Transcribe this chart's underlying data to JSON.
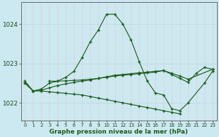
{
  "xlabel": "Graphe pression niveau de la mer (hPa)",
  "background_color": "#cce8f0",
  "grid_color_v": "#e8c8d0",
  "grid_color_h": "#b8d8e0",
  "line_color": "#1a5c1a",
  "ylim": [
    1021.55,
    1024.55
  ],
  "yticks": [
    1022,
    1023,
    1024
  ],
  "xticks": [
    0,
    1,
    2,
    3,
    4,
    5,
    6,
    7,
    8,
    9,
    10,
    11,
    12,
    13,
    14,
    15,
    16,
    17,
    18,
    19,
    20,
    21,
    22,
    23
  ],
  "s1_x": [
    0,
    1,
    2,
    3,
    4,
    5,
    6,
    7,
    8,
    9,
    10,
    11,
    12,
    13,
    14,
    15,
    16,
    17,
    18,
    19,
    20,
    22,
    23
  ],
  "s1_y": [
    1022.55,
    1022.3,
    1022.35,
    1022.5,
    1022.55,
    1022.65,
    1022.8,
    1023.15,
    1023.55,
    1023.85,
    1024.25,
    1024.25,
    1024.0,
    1023.6,
    1023.05,
    1022.55,
    1022.25,
    1022.2,
    1021.85,
    1021.8,
    1022.0,
    1022.5,
    1022.8
  ],
  "s2_x": [
    0,
    1,
    2,
    3,
    4,
    5,
    6,
    7,
    8,
    9,
    10,
    11,
    12,
    13,
    14,
    15,
    16,
    17,
    18,
    19
  ],
  "s2_y": [
    1022.5,
    1022.3,
    1022.3,
    1022.28,
    1022.26,
    1022.24,
    1022.22,
    1022.2,
    1022.16,
    1022.12,
    1022.08,
    1022.04,
    1022.0,
    1021.96,
    1021.92,
    1021.88,
    1021.84,
    1021.8,
    1021.76,
    1021.72
  ],
  "s3_x": [
    0,
    1,
    2,
    3,
    4,
    5,
    6,
    7,
    8,
    9,
    10,
    11,
    12,
    13,
    14,
    15,
    16,
    17,
    18,
    19,
    20,
    23
  ],
  "s3_y": [
    1022.5,
    1022.3,
    1022.32,
    1022.38,
    1022.44,
    1022.48,
    1022.52,
    1022.55,
    1022.58,
    1022.62,
    1022.66,
    1022.7,
    1022.72,
    1022.74,
    1022.76,
    1022.78,
    1022.8,
    1022.82,
    1022.75,
    1022.68,
    1022.6,
    1022.85
  ],
  "s4_x": [
    3,
    4,
    5,
    6,
    7,
    8,
    9,
    10,
    11,
    12,
    13,
    14,
    15,
    16,
    17,
    18,
    19,
    20,
    21,
    22,
    23
  ],
  "s4_y": [
    1022.55,
    1022.55,
    1022.56,
    1022.57,
    1022.58,
    1022.6,
    1022.62,
    1022.65,
    1022.68,
    1022.7,
    1022.72,
    1022.74,
    1022.76,
    1022.78,
    1022.82,
    1022.72,
    1022.62,
    1022.52,
    1022.75,
    1022.9,
    1022.85
  ]
}
